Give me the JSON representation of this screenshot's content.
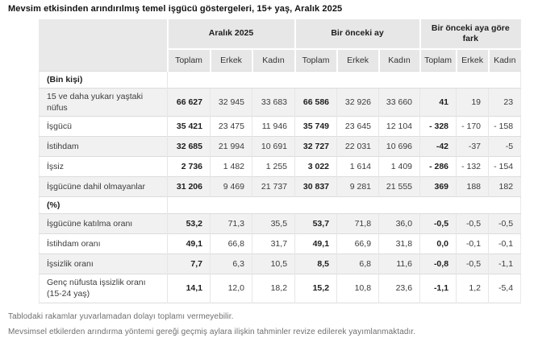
{
  "title": "Mevsim etkisinden arındırılmış temel işgücü göstergeleri, 15+ yaş, Aralık 2025",
  "table": {
    "column_groups": [
      "Aralık 2025",
      "Bir önceki ay",
      "Bir önceki aya göre fark"
    ],
    "sub_columns": [
      "Toplam",
      "Erkek",
      "Kadın",
      "Toplam",
      "Erkek",
      "Kadın",
      "Toplam",
      "Erkek",
      "Kadın"
    ],
    "sections": [
      {
        "header": "(Bin kişi)",
        "rows": [
          {
            "label": "15 ve daha yukarı yaştaki nüfus",
            "values": [
              "66 627",
              "32 945",
              "33 683",
              "66 586",
              "32 926",
              "33 660",
              "41",
              "19",
              "23"
            ]
          },
          {
            "label": "İşgücü",
            "values": [
              "35 421",
              "23 475",
              "11 946",
              "35 749",
              "23 645",
              "12 104",
              "- 328",
              "- 170",
              "- 158"
            ]
          },
          {
            "label": "İstihdam",
            "values": [
              "32 685",
              "21 994",
              "10 691",
              "32 727",
              "22 031",
              "10 696",
              "-42",
              "-37",
              "-5"
            ]
          },
          {
            "label": "İşsiz",
            "values": [
              "2 736",
              "1 482",
              "1 255",
              "3 022",
              "1 614",
              "1 409",
              "- 286",
              "- 132",
              "- 154"
            ]
          },
          {
            "label": "İşgücüne dahil olmayanlar",
            "values": [
              "31 206",
              "9 469",
              "21 737",
              "30 837",
              "9 281",
              "21 555",
              "369",
              "188",
              "182"
            ]
          }
        ]
      },
      {
        "header": "(%)",
        "rows": [
          {
            "label": "İşgücüne katılma oranı",
            "values": [
              "53,2",
              "71,3",
              "35,5",
              "53,7",
              "71,8",
              "36,0",
              "-0,5",
              "-0,5",
              "-0,5"
            ]
          },
          {
            "label": "İstihdam oranı",
            "values": [
              "49,1",
              "66,8",
              "31,7",
              "49,1",
              "66,9",
              "31,8",
              "0,0",
              "-0,1",
              "-0,1"
            ]
          },
          {
            "label": "İşsizlik oranı",
            "values": [
              "7,7",
              "6,3",
              "10,5",
              "8,5",
              "6,8",
              "11,6",
              "-0,8",
              "-0,5",
              "-1,1"
            ]
          },
          {
            "label": "Genç nüfusta işsizlik oranı\n(15-24 yaş)",
            "values": [
              "14,1",
              "12,0",
              "18,2",
              "15,2",
              "10,8",
              "23,6",
              "-1,1",
              "1,2",
              "-5,4"
            ]
          }
        ]
      }
    ]
  },
  "footnotes": [
    "Tablodaki rakamlar yuvarlamadan dolayı toplamı vermeyebilir.",
    "Mevsimsel etkilerden arındırma yöntemi gereği geçmiş aylara ilişkin tahminler revize edilerek yayımlanmaktadır."
  ],
  "colors": {
    "header_bg": "#e7e7e7",
    "stripe_bg": "#f1f1f1",
    "border": "#dcdcdc",
    "text": "#3a3a3a",
    "footnote_text": "#6f6f6f"
  }
}
